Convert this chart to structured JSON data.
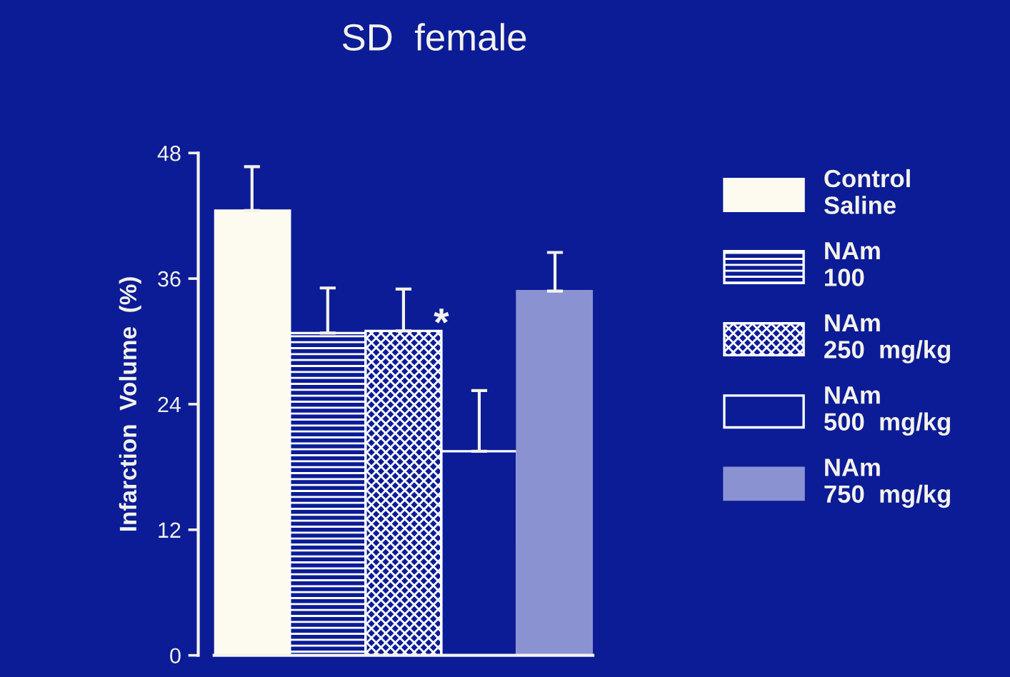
{
  "chart_data": {
    "type": "bar",
    "title": "SD  female",
    "ylabel": "Infarction  Volume  (%)",
    "categories": [
      null,
      null,
      null,
      null,
      null
    ],
    "series": [
      {
        "name": "Control\nSaline",
        "color": "#fdfaf0",
        "values": [
          42.5,
          null,
          null,
          null,
          null
        ],
        "errors": [
          [
            42.5,
            46.7
          ],
          null,
          null,
          null,
          null
        ]
      },
      {
        "name": "NAm\n100",
        "color": "#ffffff",
        "values": [
          null,
          30.8,
          null,
          null,
          null
        ],
        "errors": [
          null,
          [
            30.8,
            35.1
          ],
          null,
          null,
          null
        ]
      },
      {
        "name": "NAm\n250  mg/kg",
        "color": "#ffffff",
        "values": [
          null,
          null,
          31.0,
          null,
          null
        ],
        "errors": [
          null,
          null,
          [
            31.0,
            35.0
          ],
          null,
          null
        ]
      },
      {
        "name": "NAm\n500  mg/kg",
        "color": "#ffffff",
        "values": [
          null,
          null,
          null,
          19.5,
          null
        ],
        "errors": [
          null,
          null,
          null,
          [
            19.5,
            25.3
          ],
          null
        ]
      },
      {
        "name": "NAm\n750  mg/kg",
        "color": "#8a92d2",
        "values": [
          null,
          null,
          null,
          null,
          34.8
        ],
        "errors": [
          null,
          null,
          null,
          null,
          [
            34.8,
            38.5
          ]
        ]
      }
    ],
    "annotations": [
      "*"
    ],
    "ylim": [
      0,
      48
    ],
    "yticks": [
      0,
      12,
      24,
      36,
      48
    ],
    "grid": false,
    "legend": "right"
  }
}
